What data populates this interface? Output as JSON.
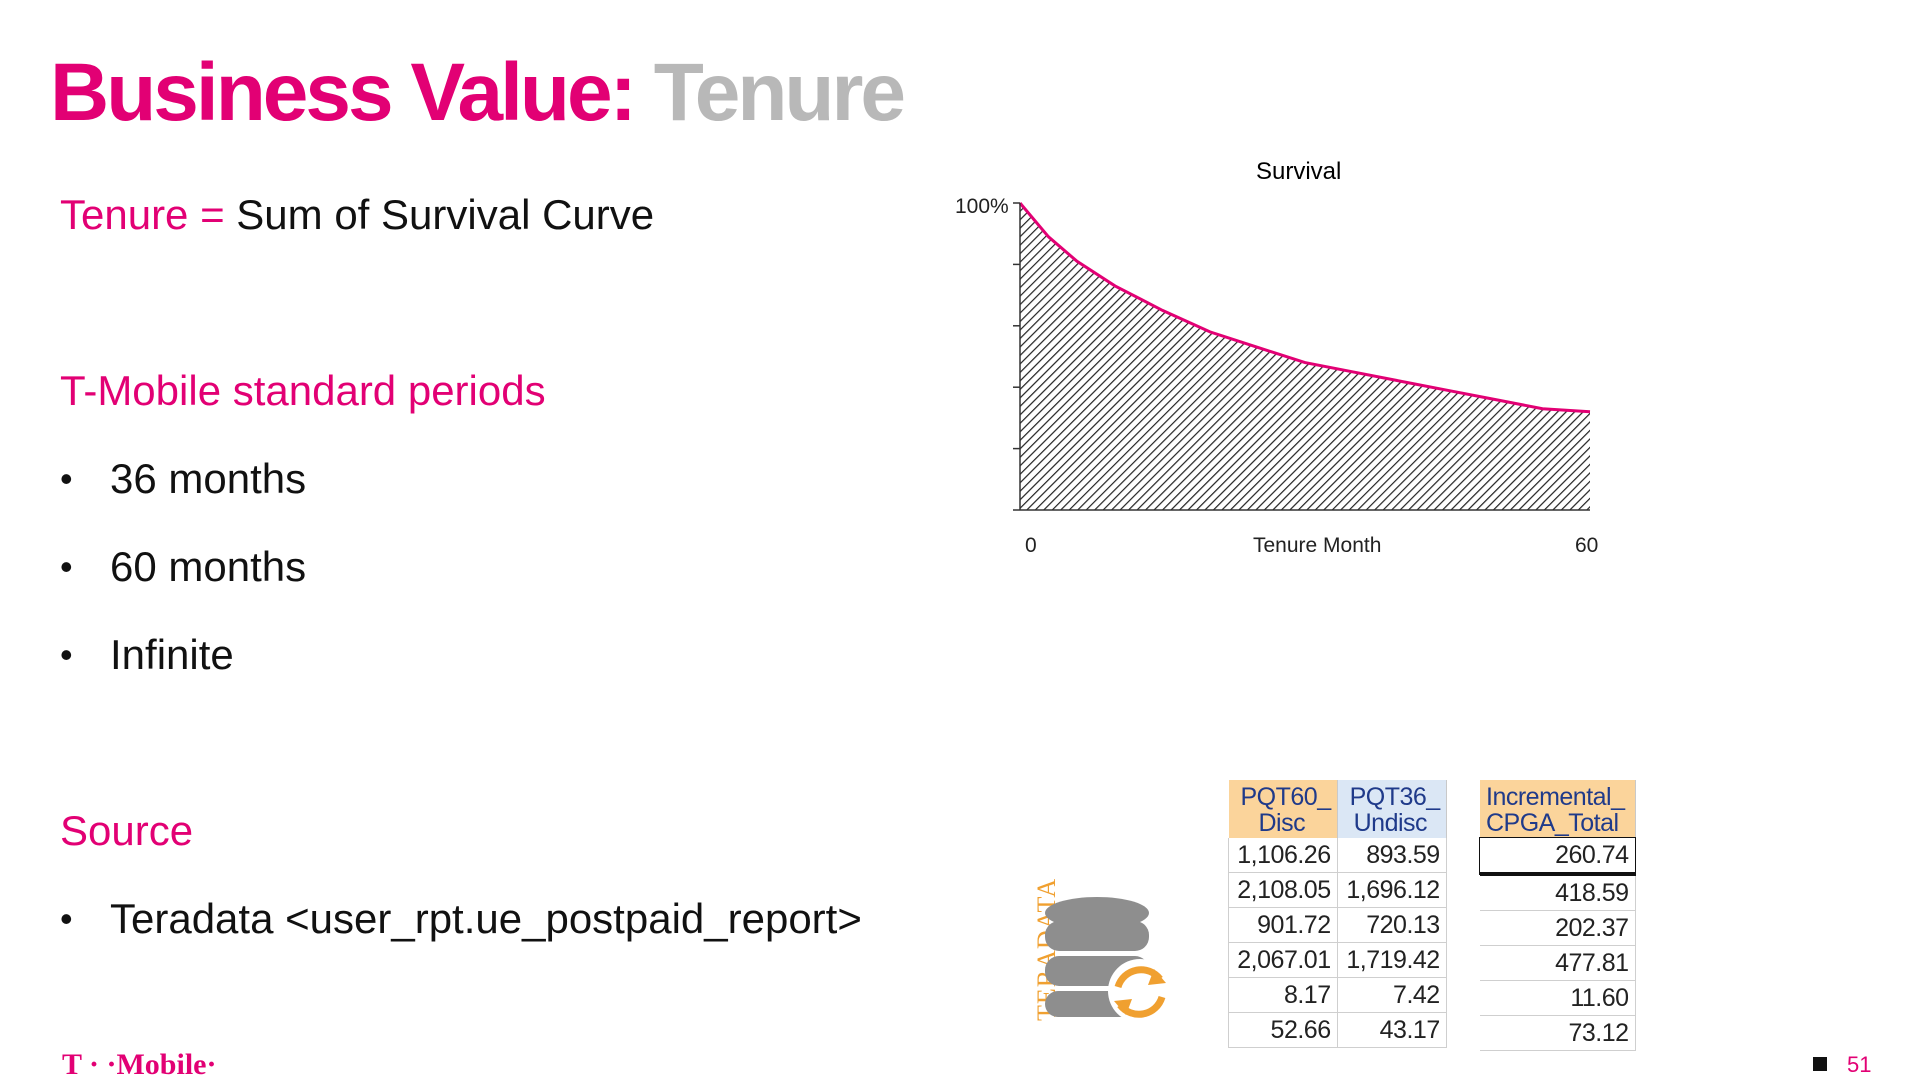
{
  "title": {
    "part1": "Business Value:",
    "part2": "Tenure"
  },
  "definition": {
    "label": "Tenure =",
    "text": "Sum of Survival Curve"
  },
  "periods": {
    "heading": "T-Mobile standard periods",
    "items": [
      "36 months",
      "60 months",
      "Infinite"
    ]
  },
  "source": {
    "heading": "Source",
    "items": [
      "Teradata <user_rpt.ue_postpaid_report>"
    ]
  },
  "bullet_char": "•",
  "chart_data": {
    "type": "area",
    "title": "Survival",
    "xlabel": "Tenure Month",
    "x_ticks": [
      "0",
      "60"
    ],
    "y_ticks": [
      "100%"
    ],
    "xlim": [
      0,
      60
    ],
    "ylim": [
      0,
      1
    ],
    "x": [
      0,
      3,
      6,
      10,
      15,
      20,
      25,
      30,
      35,
      40,
      45,
      50,
      55,
      60
    ],
    "y": [
      1.0,
      0.89,
      0.81,
      0.73,
      0.65,
      0.58,
      0.53,
      0.48,
      0.45,
      0.42,
      0.39,
      0.36,
      0.33,
      0.32
    ],
    "fill_pattern": "diagonal-hatch",
    "line_color": "#e20074"
  },
  "table1": {
    "headers": [
      [
        "PQT60_",
        "Disc"
      ],
      [
        "PQT36_",
        "Undisc"
      ]
    ],
    "rows": [
      [
        "1,106.26",
        "893.59"
      ],
      [
        "2,108.05",
        "1,696.12"
      ],
      [
        "901.72",
        "720.13"
      ],
      [
        "2,067.01",
        "1,719.42"
      ],
      [
        "8.17",
        "7.42"
      ],
      [
        "52.66",
        "43.17"
      ]
    ]
  },
  "table2": {
    "headers": [
      [
        "Incremental_",
        "CPGA_Total"
      ]
    ],
    "rows": [
      [
        "260.74"
      ],
      [
        "418.59"
      ],
      [
        "202.37"
      ],
      [
        "477.81"
      ],
      [
        "11.60"
      ],
      [
        "73.12"
      ]
    ]
  },
  "teradata_logo": "TERADATA",
  "footer": {
    "brand": "T · ·Mobile·",
    "page": "51"
  },
  "colors": {
    "accent": "#e20074",
    "title_gray": "#b8b8b8",
    "teradata_orange": "#f0a030"
  }
}
